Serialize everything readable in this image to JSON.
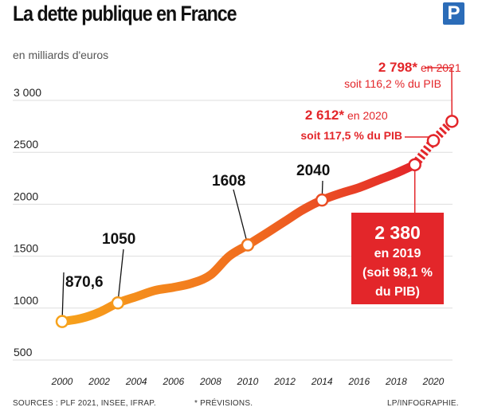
{
  "header": {
    "title": "La dette publique en France",
    "logo_letter": "P"
  },
  "footer": {
    "sources": "SOURCES : PLF 2021, INSEE, IFRAP.",
    "forecast_note": "* PRÉVISIONS.",
    "credit": "LP/INFOGRAPHIE."
  },
  "colors": {
    "line_start": "#f7a21b",
    "line_end": "#e3262a",
    "accent_red": "#e3262a",
    "grid": "#dddddd",
    "logo_blue": "#2b6cb8"
  },
  "chart_data": {
    "type": "line",
    "title": "La dette publique en France",
    "subtitle": "en milliards d'euros",
    "xlim": [
      2000,
      2021
    ],
    "ylim": [
      500,
      3000
    ],
    "yticks": [
      500,
      1000,
      1500,
      2000,
      2500,
      3000
    ],
    "ytick_labels": [
      "500",
      "1000",
      "1500",
      "2000",
      "2500",
      "3 000"
    ],
    "xticks": [
      2000,
      2002,
      2004,
      2006,
      2008,
      2010,
      2012,
      2014,
      2016,
      2018,
      2020
    ],
    "grid": true,
    "series": [
      {
        "x": [
          2000,
          2001,
          2002,
          2003,
          2004,
          2005,
          2006,
          2007,
          2008,
          2009,
          2010,
          2011,
          2012,
          2013,
          2014,
          2015,
          2016,
          2017,
          2018,
          2019
        ],
        "values": [
          870.6,
          900,
          960,
          1050,
          1110,
          1170,
          1200,
          1240,
          1320,
          1500,
          1608,
          1720,
          1835,
          1950,
          2040,
          2105,
          2160,
          2230,
          2300,
          2380
        ],
        "forecast_x": [
          2019,
          2020,
          2021
        ],
        "forecast_values": [
          2380,
          2612,
          2798
        ]
      }
    ],
    "labeled_points": [
      {
        "x": 2000,
        "y": 870.6,
        "label": "870,6"
      },
      {
        "x": 2003,
        "y": 1050,
        "label": "1050"
      },
      {
        "x": 2010,
        "y": 1608,
        "label": "1608"
      },
      {
        "x": 2014,
        "y": 2040,
        "label": "2040"
      }
    ],
    "annotations": {
      "y2019": {
        "value": "2 380",
        "line2": "en 2019",
        "line3": "(soit 98,1 %",
        "line4": "du PIB)"
      },
      "y2020": {
        "value": "2 612*",
        "suffix": "en 2020",
        "line2": "soit 117,5 % du PIB"
      },
      "y2021": {
        "value": "2 798*",
        "suffix": "en 2021",
        "line2": "soit 116,2 % du PIB"
      }
    }
  }
}
